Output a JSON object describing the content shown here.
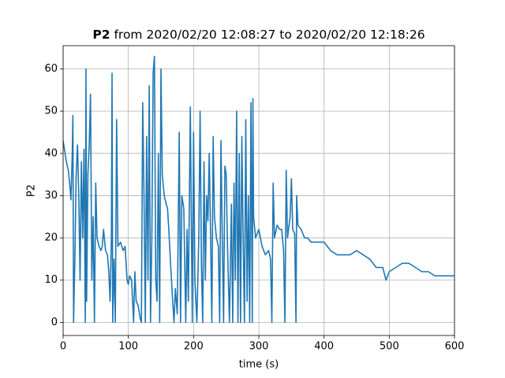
{
  "chart_data": {
    "type": "line",
    "title_name": "P2",
    "title": "from 2020/02/20 12:08:27 to 2020/02/20 12:18:26",
    "xlabel": "time (s)",
    "ylabel": "P2",
    "color": "#1f77b4",
    "grid": true,
    "xlim": [
      0,
      600
    ],
    "ylim": [
      -3.1,
      65.5
    ],
    "xticks": [
      0,
      100,
      200,
      300,
      400,
      500,
      600
    ],
    "yticks": [
      0,
      10,
      20,
      30,
      40,
      50,
      60
    ],
    "x": [
      0,
      2,
      5,
      8,
      10,
      12,
      14,
      15,
      16,
      18,
      20,
      22,
      24,
      26,
      28,
      30,
      32,
      34,
      35,
      36,
      38,
      40,
      42,
      44,
      46,
      48,
      50,
      52,
      55,
      58,
      60,
      62,
      65,
      68,
      70,
      72,
      74,
      75,
      76,
      78,
      80,
      82,
      84,
      88,
      92,
      95,
      98,
      100,
      102,
      105,
      108,
      110,
      112,
      115,
      118,
      120,
      122,
      124,
      126,
      128,
      130,
      132,
      134,
      136,
      138,
      140,
      142,
      144,
      146,
      148,
      150,
      152,
      155,
      158,
      160,
      162,
      165,
      168,
      170,
      172,
      175,
      178,
      180,
      182,
      185,
      188,
      190,
      192,
      195,
      198,
      200,
      202,
      205,
      208,
      210,
      212,
      214,
      216,
      218,
      220,
      222,
      224,
      226,
      228,
      230,
      232,
      235,
      238,
      240,
      242,
      244,
      246,
      248,
      250,
      252,
      255,
      258,
      260,
      262,
      264,
      266,
      268,
      270,
      272,
      274,
      276,
      278,
      280,
      282,
      284,
      286,
      288,
      290,
      291,
      292,
      295,
      300,
      305,
      310,
      315,
      318,
      320,
      322,
      324,
      328,
      332,
      335,
      338,
      340,
      342,
      344,
      348,
      350,
      352,
      355,
      357,
      358,
      360,
      365,
      370,
      375,
      380,
      390,
      400,
      410,
      420,
      430,
      440,
      450,
      460,
      470,
      480,
      490,
      495,
      500,
      510,
      520,
      530,
      540,
      550,
      560,
      570,
      580,
      590,
      600
    ],
    "values": [
      43,
      41,
      38,
      36,
      33,
      29,
      40,
      49,
      0,
      15,
      35,
      42,
      30,
      10,
      38,
      20,
      41,
      0,
      60,
      5,
      35,
      42,
      54,
      10,
      25,
      0,
      33,
      20,
      18,
      17,
      18,
      22,
      17,
      16,
      12,
      5,
      20,
      59,
      0,
      15,
      0,
      48,
      18,
      19,
      17,
      18,
      10,
      9,
      11,
      10,
      0,
      12,
      5,
      4,
      1,
      0,
      52,
      30,
      0,
      44,
      10,
      56,
      0,
      20,
      59,
      63,
      10,
      5,
      40,
      0,
      60,
      35,
      30,
      28,
      27,
      22,
      13,
      5,
      0,
      8,
      2,
      45,
      0,
      30,
      27,
      0,
      22,
      5,
      51,
      0,
      45,
      10,
      0,
      20,
      50,
      14,
      0,
      38,
      10,
      30,
      24,
      40,
      21,
      0,
      44,
      25,
      20,
      18,
      0,
      43,
      20,
      0,
      37,
      35,
      18,
      0,
      28,
      0,
      33,
      10,
      50,
      0,
      40,
      0,
      44,
      20,
      0,
      48,
      5,
      30,
      0,
      52,
      0,
      53,
      25,
      20,
      22,
      18,
      16,
      17,
      15,
      0,
      33,
      20,
      23,
      22,
      22,
      17,
      0,
      36,
      20,
      25,
      34,
      22,
      21,
      0,
      30,
      23,
      22,
      20,
      20,
      19,
      19,
      19,
      17,
      16,
      16,
      16,
      17,
      16,
      15,
      13,
      13,
      10,
      12,
      13,
      14,
      14,
      13,
      12,
      12,
      11,
      11,
      11,
      11
    ]
  }
}
